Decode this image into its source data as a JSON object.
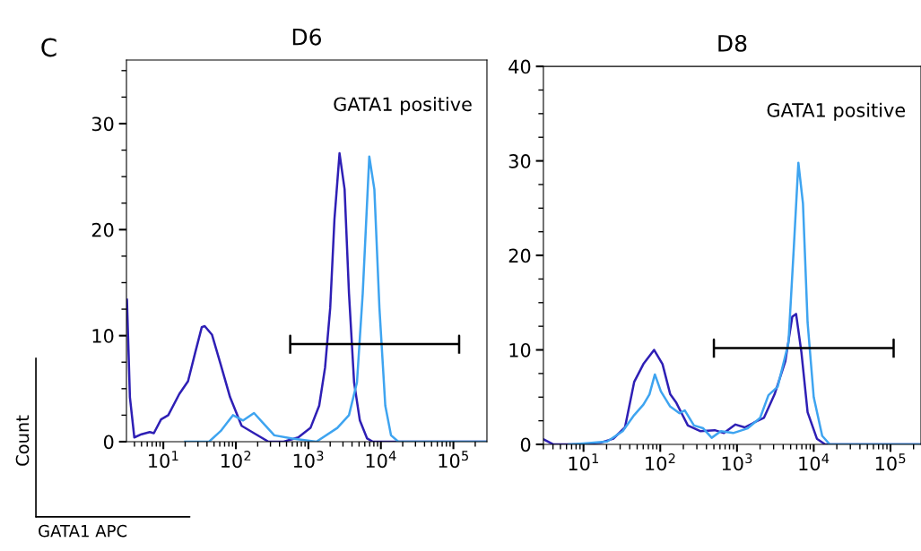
{
  "chart_data": [
    {
      "type": "line",
      "title": "D6",
      "xlabel": "GATA1 APC",
      "ylabel": "Count",
      "log": "x",
      "annotations": [
        "C",
        "GATA1 positive"
      ],
      "xlim": [
        3.1,
        290000
      ],
      "ylim": [
        0,
        36
      ],
      "xticks": [
        {
          "value": 10,
          "label": "10$^{1}$"
        },
        {
          "value": 100,
          "label": "10$^{2}$"
        },
        {
          "value": 1000,
          "label": "10$^{3}$"
        },
        {
          "value": 10000,
          "label": "10$^{4}$"
        },
        {
          "value": 100000,
          "label": "10$^{5}$"
        }
      ],
      "yticks": [
        0,
        10,
        20,
        30
      ],
      "grid": false,
      "legend": false,
      "series": [
        {
          "color": "#2e1fb5",
          "x": [
            3.15,
            3.46,
            3.98,
            5.0,
            6.5,
            7.4,
            9.3,
            11.7,
            16.6,
            21.9,
            27.5,
            33.9,
            37.2,
            46.8,
            61.7,
            83.2,
            120,
            178,
            282,
            457,
            724,
            1070,
            1410,
            1700,
            2000,
            2290,
            2690,
            3160,
            3630,
            4270,
            5130,
            6460,
            7760,
            280000
          ],
          "values": [
            13.4,
            4.2,
            0.4,
            0.7,
            0.9,
            0.8,
            2.1,
            2.5,
            4.5,
            5.7,
            8.4,
            10.8,
            10.9,
            10.1,
            7.3,
            4.2,
            1.5,
            0.8,
            0,
            0,
            0.4,
            1.3,
            3.4,
            7.0,
            12.6,
            21.0,
            27.2,
            23.8,
            14.0,
            5.6,
            2.0,
            0.3,
            0,
            0
          ]
        },
        {
          "color": "#3ea4f0",
          "x": [
            20,
            42.7,
            61.7,
            91.2,
            126,
            178,
            234,
            339,
            603,
            1290,
            2510,
            3630,
            4680,
            5620,
            6920,
            8130,
            9550,
            11500,
            13800,
            17400,
            280000
          ],
          "values": [
            0,
            0,
            1.0,
            2.5,
            2.0,
            2.7,
            1.8,
            0.6,
            0.3,
            0,
            1.3,
            2.5,
            5.6,
            14.0,
            26.9,
            23.8,
            12.6,
            3.4,
            0.6,
            0,
            0
          ]
        },
        {
          "color": "#000000",
          "x": [
            562,
            562,
            562,
            120000,
            120000,
            120000
          ],
          "values": [
            8.4,
            10.0,
            9.2,
            9.2,
            10.0,
            8.4
          ]
        }
      ]
    },
    {
      "type": "line",
      "title": "D8",
      "log": "x",
      "annotations": [
        "GATA1 positive"
      ],
      "xlim": [
        3.0,
        250000
      ],
      "ylim": [
        0,
        40
      ],
      "xticks": [
        {
          "value": 10,
          "label": "10$^{1}$"
        },
        {
          "value": 100,
          "label": "10$^{2}$"
        },
        {
          "value": 1000,
          "label": "10$^{3}$"
        },
        {
          "value": 10000,
          "label": "10$^{4}$"
        },
        {
          "value": 100000,
          "label": "10$^{5}$"
        }
      ],
      "yticks": [
        0,
        10,
        20,
        30,
        40
      ],
      "grid": false,
      "legend": false,
      "series": [
        {
          "color": "#2e1fb5",
          "x": [
            3.06,
            4.07,
            10,
            17,
            24.5,
            34.7,
            45.7,
            60.3,
            83.2,
            107,
            135,
            162,
            229,
            331,
            513,
            676,
            955,
            1260,
            1660,
            2240,
            3090,
            4270,
            5250,
            5890,
            6920,
            8320,
            11000,
            14100,
            250000
          ],
          "values": [
            0.5,
            0,
            0,
            0.2,
            0.6,
            1.8,
            6.6,
            8.5,
            10.0,
            8.5,
            5.3,
            4.4,
            2.0,
            1.4,
            1.5,
            1.2,
            2.1,
            1.8,
            2.3,
            2.8,
            5.3,
            8.8,
            13.5,
            13.8,
            9.7,
            3.4,
            0.6,
            0,
            0
          ]
        },
        {
          "color": "#3ea4f0",
          "x": [
            6.5,
            10,
            20.4,
            32.4,
            45.7,
            60.3,
            72.4,
            85.1,
            102,
            135,
            178,
            209,
            275,
            363,
            468,
            617,
            891,
            1380,
            2000,
            2570,
            3390,
            4680,
            5500,
            6310,
            7240,
            8320,
            10000,
            12900,
            16200,
            250000
          ],
          "values": [
            0,
            0.1,
            0.3,
            1.4,
            3.1,
            4.2,
            5.3,
            7.4,
            5.6,
            4.0,
            3.3,
            3.6,
            2.0,
            1.7,
            0.7,
            1.4,
            1.2,
            1.7,
            2.8,
            5.2,
            6.1,
            10.7,
            20.8,
            29.8,
            25.5,
            12.9,
            5.0,
            0.9,
            0,
            0
          ]
        },
        {
          "color": "#000000",
          "x": [
            500,
            500,
            500,
            110000,
            110000,
            110000
          ],
          "values": [
            9.3,
            11.1,
            10.2,
            10.2,
            11.1,
            9.3
          ]
        }
      ]
    }
  ]
}
